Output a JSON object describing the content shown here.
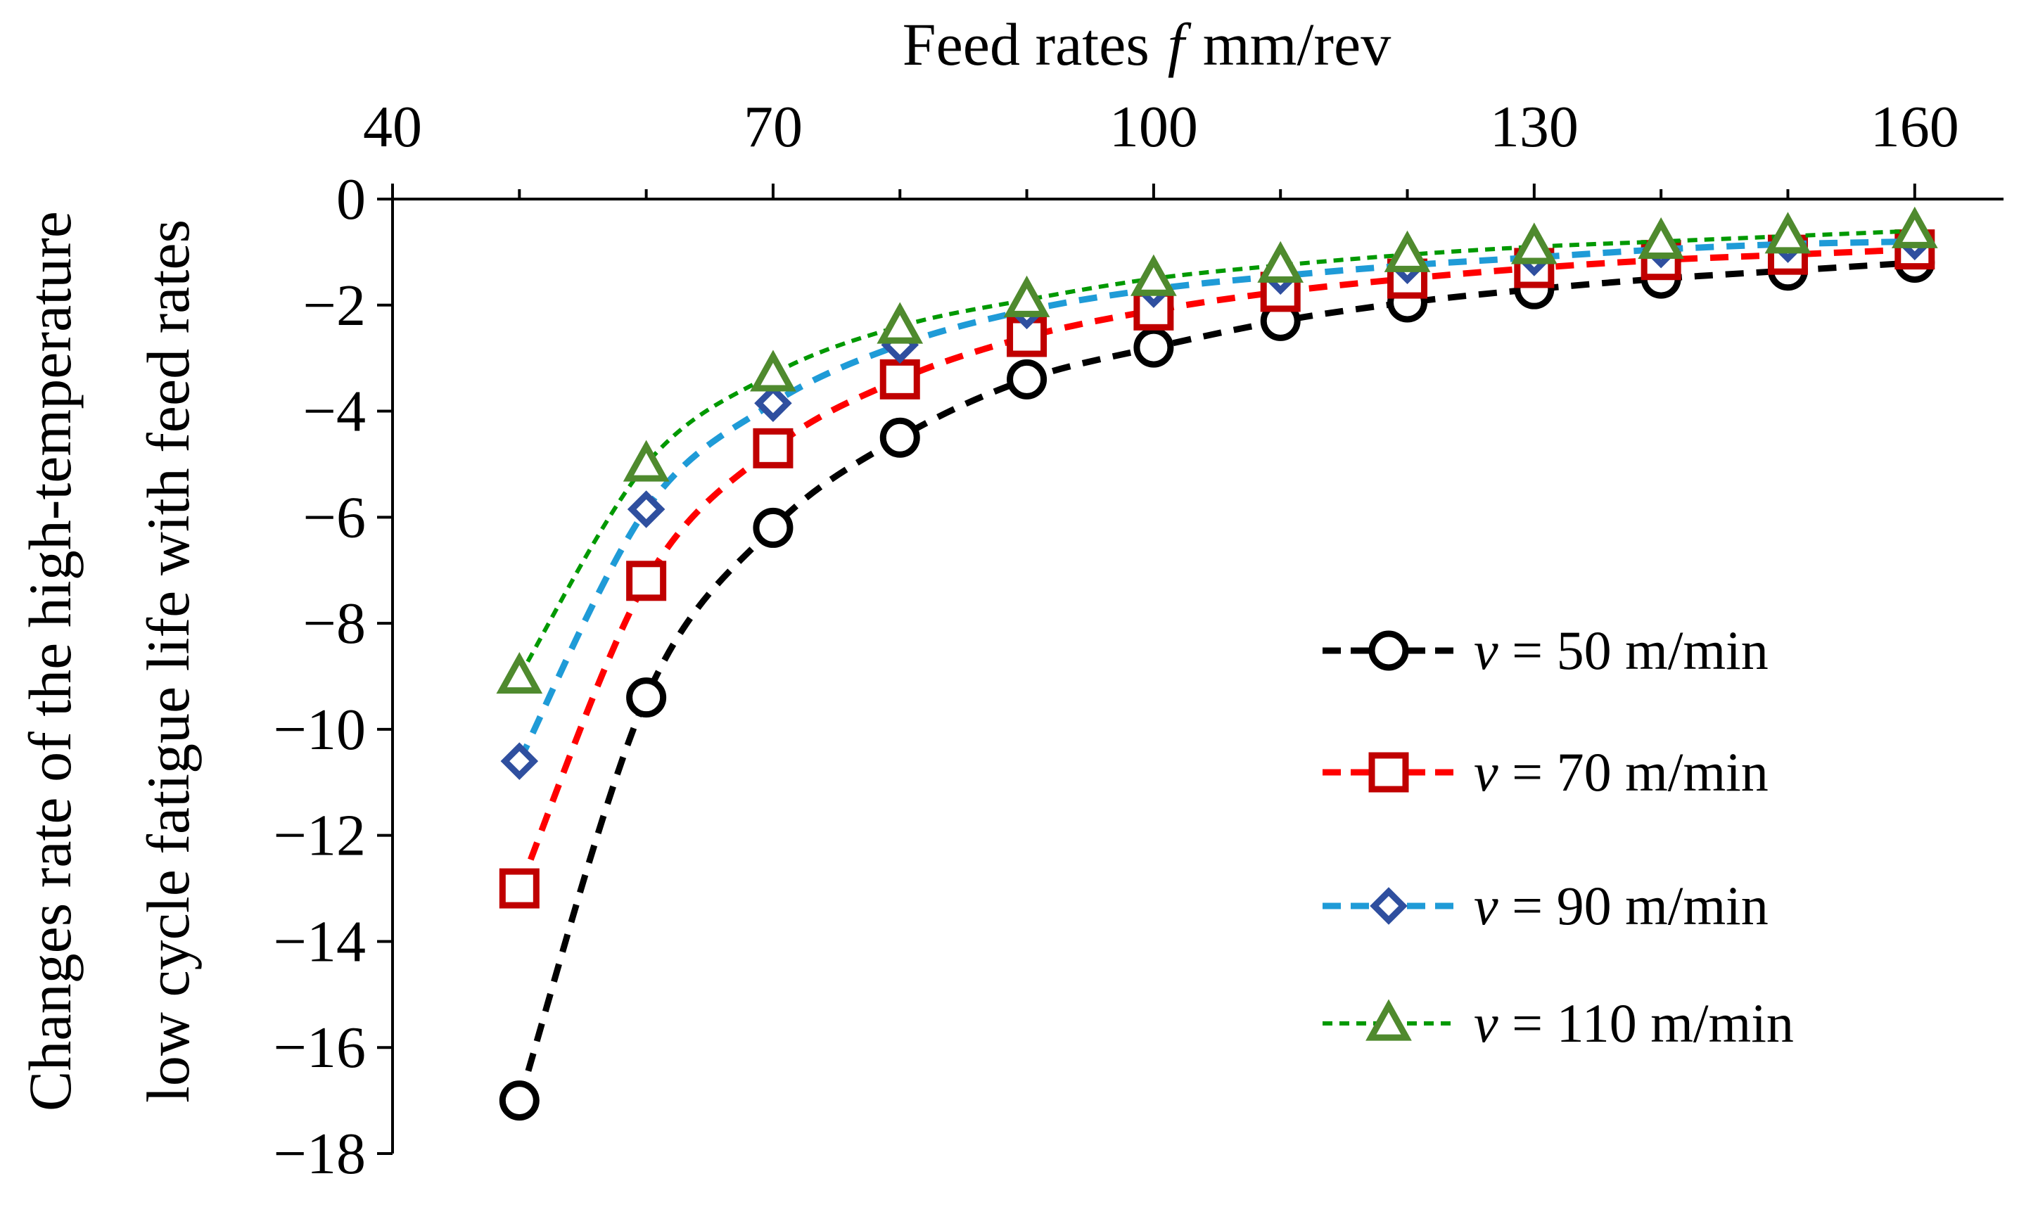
{
  "chart_data": {
    "type": "line",
    "title": "",
    "xlabel": {
      "prefix": "Feed rates",
      "symbol": "f",
      "unit": "mm/rev"
    },
    "ylabel": {
      "line1": "Changes rate of the high-temperature",
      "line2": "low cycle fatigue life with feed rates"
    },
    "x_axis_position": "top",
    "xlim": [
      40,
      167
    ],
    "ylim": [
      -18,
      0
    ],
    "xticks": [
      40,
      70,
      100,
      130,
      160
    ],
    "xtick_labels": [
      "40",
      "70",
      "100",
      "130",
      "160"
    ],
    "yticks": [
      0,
      -2,
      -4,
      -6,
      -8,
      -10,
      -12,
      -14,
      -16,
      -18
    ],
    "ytick_labels": [
      "0",
      "−2",
      "−4",
      "−6",
      "−8",
      "−10",
      "−12",
      "−14",
      "−16",
      "−18"
    ],
    "grid": false,
    "legend_position": "right",
    "x": [
      50,
      60,
      70,
      80,
      90,
      100,
      110,
      120,
      130,
      140,
      150,
      160
    ],
    "series": [
      {
        "name": "v = 50 m/min",
        "symbol": "v",
        "label_rest": " = 50 m/min",
        "color": "#000000",
        "marker_color": "#000000",
        "marker": "circle",
        "values": [
          -17.0,
          -9.4,
          -6.2,
          -4.5,
          -3.4,
          -2.8,
          -2.3,
          -1.95,
          -1.7,
          -1.5,
          -1.35,
          -1.2
        ]
      },
      {
        "name": "v = 70 m/min",
        "symbol": "v",
        "label_rest": " = 70 m/min",
        "color": "#FF0000",
        "marker_color": "#C00000",
        "marker": "square",
        "values": [
          -13.0,
          -7.2,
          -4.7,
          -3.4,
          -2.6,
          -2.1,
          -1.75,
          -1.5,
          -1.3,
          -1.15,
          -1.05,
          -0.95
        ]
      },
      {
        "name": "v = 90 m/min",
        "symbol": "v",
        "label_rest": " = 90 m/min",
        "color": "#1F9BD7",
        "marker_color": "#2F4F9F",
        "marker": "diamond",
        "values": [
          -10.6,
          -5.85,
          -3.85,
          -2.75,
          -2.1,
          -1.7,
          -1.45,
          -1.25,
          -1.1,
          -0.95,
          -0.85,
          -0.8
        ]
      },
      {
        "name": "v = 110 m/min",
        "symbol": "v",
        "label_rest": " = 110 m/min",
        "color": "#009900",
        "marker_color": "#4F8A2E",
        "marker": "triangle",
        "values": [
          -9.0,
          -5.0,
          -3.3,
          -2.4,
          -1.9,
          -1.5,
          -1.25,
          -1.05,
          -0.9,
          -0.8,
          -0.7,
          -0.6
        ]
      }
    ]
  }
}
